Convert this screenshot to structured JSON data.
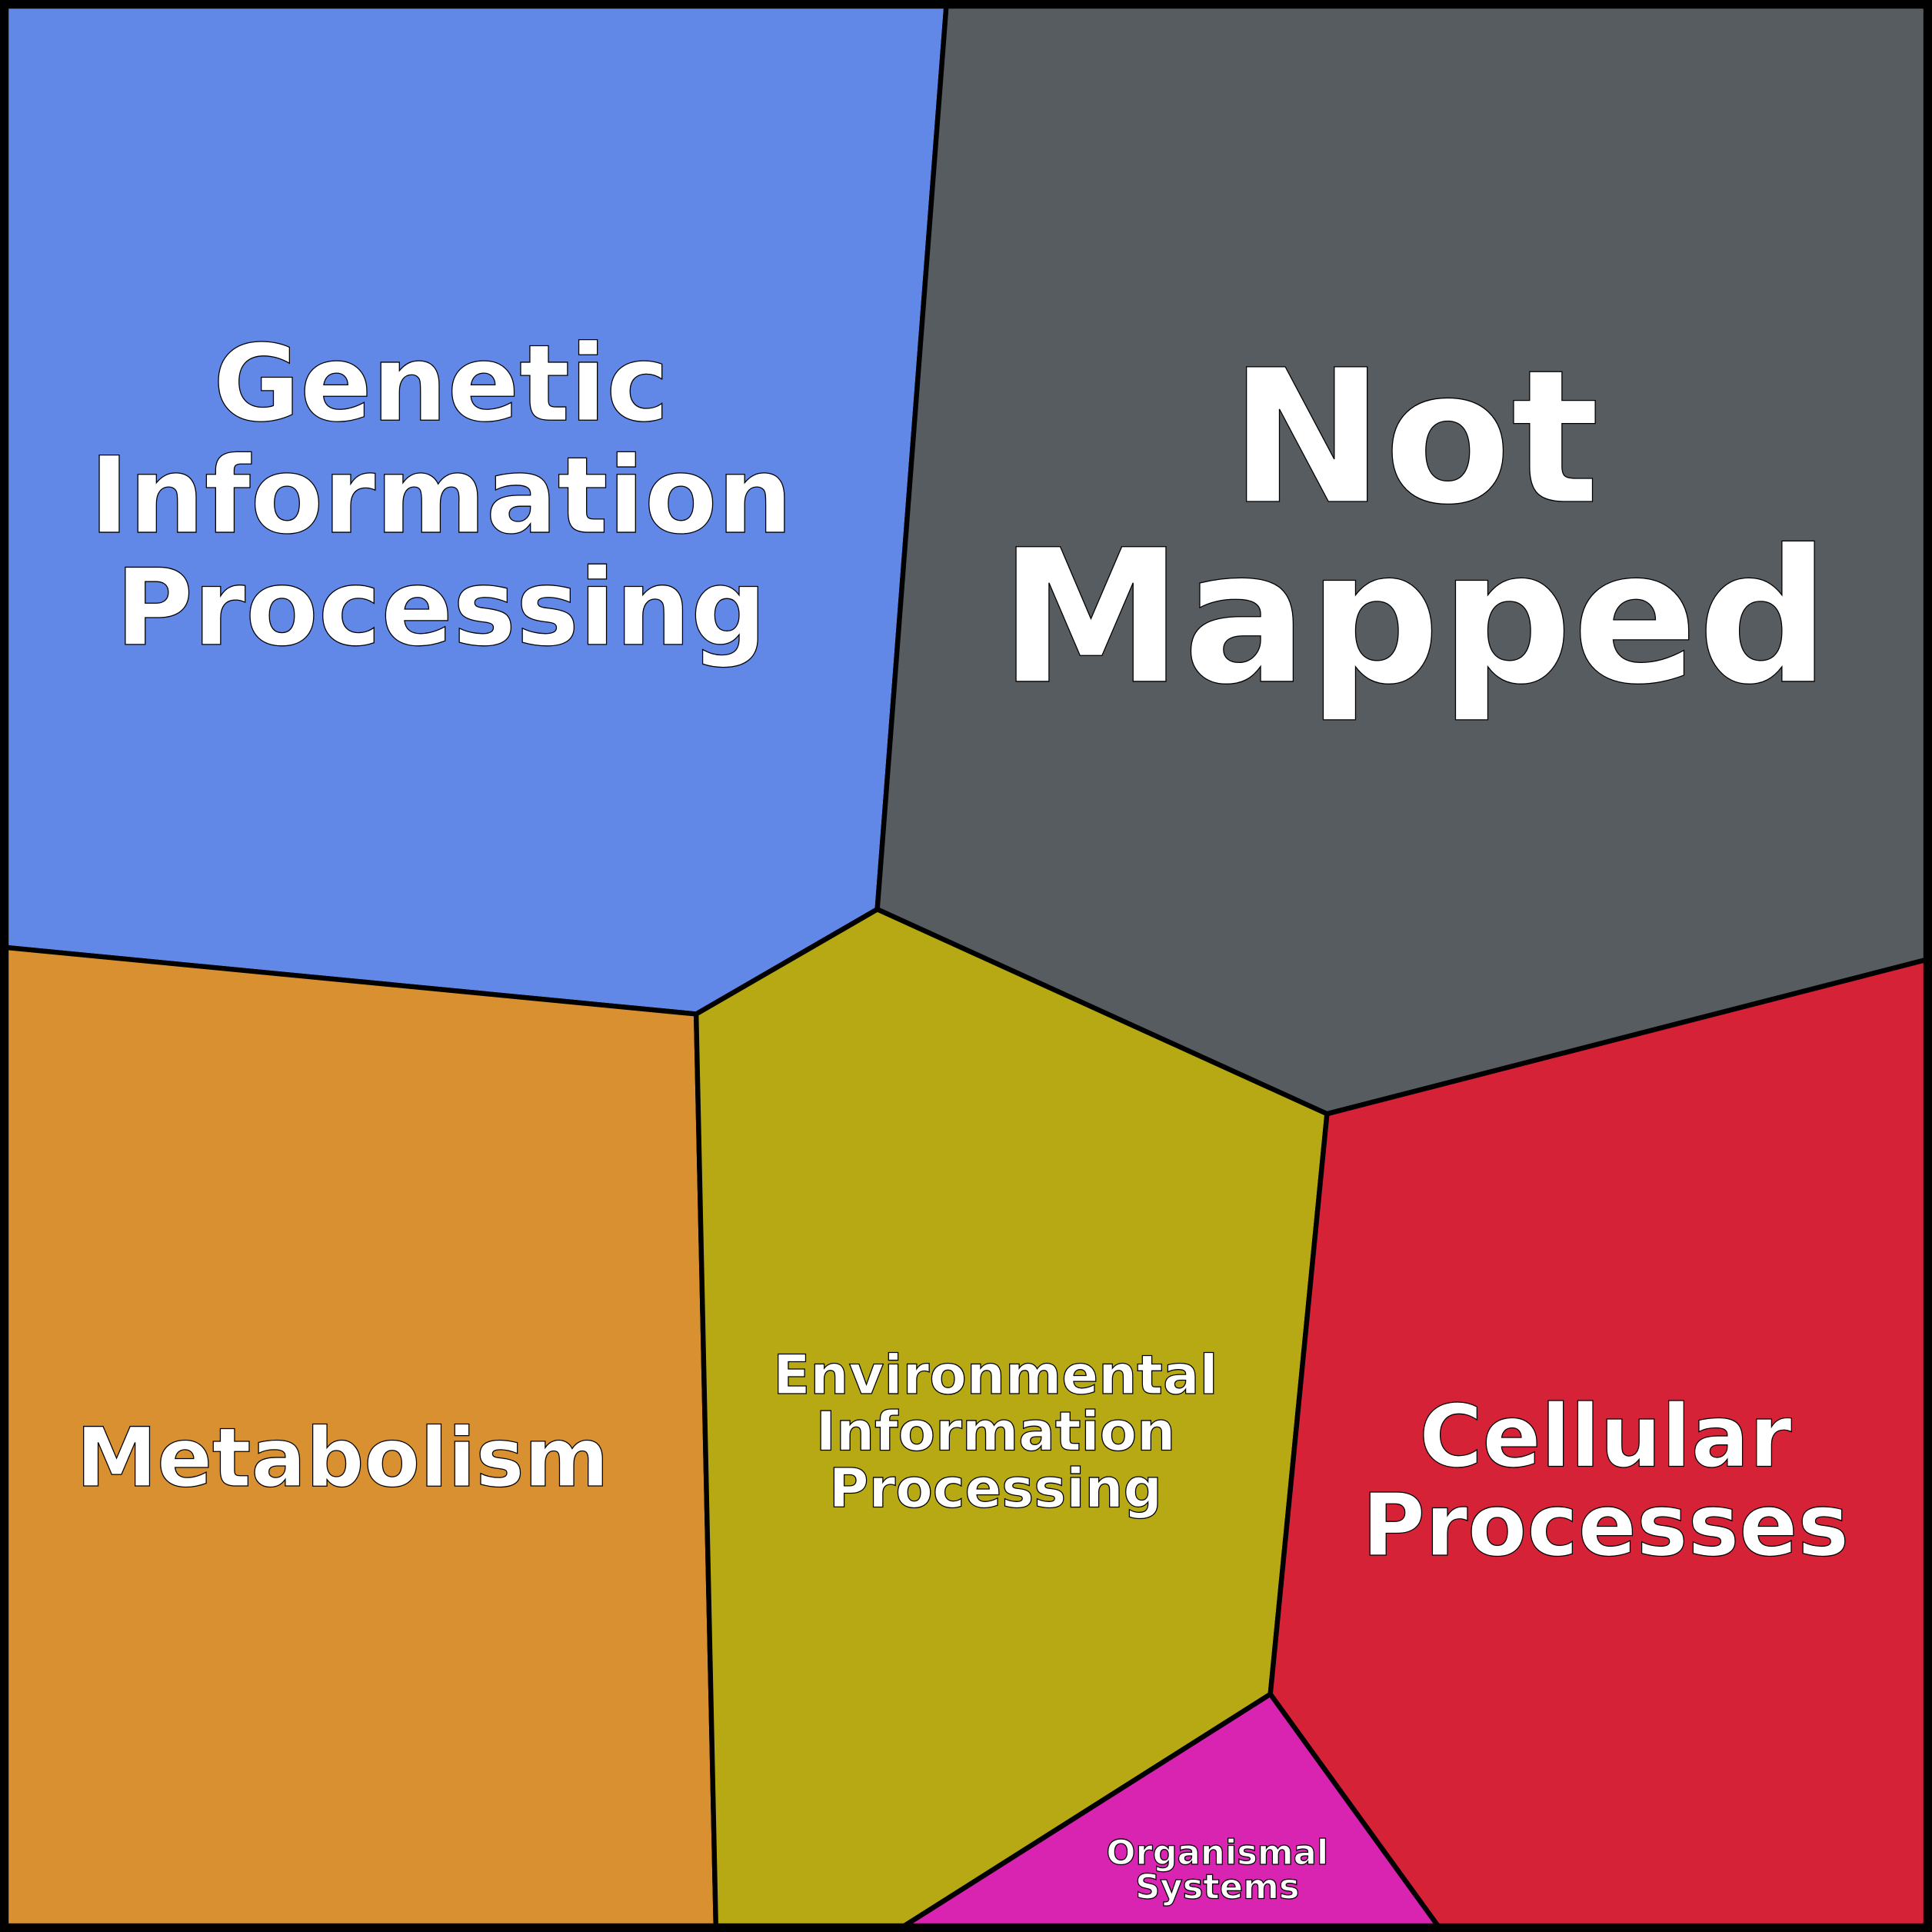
{
  "chart_data": {
    "type": "voronoi-treemap",
    "cells": [
      {
        "name": "Genetic Information Processing",
        "lines": [
          "Genetic",
          "Information",
          "Processing"
        ],
        "color": "#6188e6"
      },
      {
        "name": "Not Mapped",
        "lines": [
          "Not",
          "Mapped"
        ],
        "color": "#575c61"
      },
      {
        "name": "Metabolism",
        "lines": [
          "Metabolism"
        ],
        "color": "#d89030"
      },
      {
        "name": "Environmental Information Processing",
        "lines": [
          "Environmental",
          "Information",
          "Processing"
        ],
        "color": "#b7a913"
      },
      {
        "name": "Cellular Processes",
        "lines": [
          "Cellular",
          "Processes"
        ],
        "color": "#d62236"
      },
      {
        "name": "Organismal Systems",
        "lines": [
          "Organismal",
          "Systems"
        ],
        "color": "#d824b0"
      }
    ]
  }
}
